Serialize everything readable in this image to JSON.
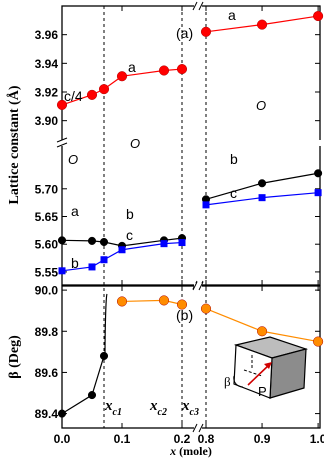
{
  "chart_data": {
    "type": "scatter",
    "xlabel": "x (mole)",
    "x_ticks": [
      "0.0",
      "0.1",
      "0.2",
      "0.8",
      "0.9",
      "1.0"
    ],
    "top_panel": {
      "panel_label": "(a)",
      "ylabel": "Lattice constant (Å)",
      "upper_axis": {
        "ylim": [
          3.89,
          3.98
        ],
        "yticks": [
          "3.90",
          "3.92",
          "3.94",
          "3.96"
        ]
      },
      "lower_axis": {
        "ylim": [
          5.53,
          5.77
        ],
        "yticks": [
          "5.55",
          "5.60",
          "5.65",
          "5.70"
        ]
      },
      "series": [
        {
          "name": "c/4",
          "color": "#ff0000",
          "marker": "circle",
          "axis": "upper",
          "points": [
            [
              0.0,
              3.911
            ],
            [
              0.05,
              3.918
            ],
            [
              0.07,
              3.922
            ],
            [
              0.1,
              3.931
            ],
            [
              0.17,
              3.935
            ],
            [
              0.2,
              3.936
            ],
            [
              0.8,
              3.962
            ],
            [
              0.9,
              3.967
            ],
            [
              1.0,
              3.973
            ]
          ]
        },
        {
          "name": "a",
          "color": "#000000",
          "marker": "circle",
          "axis": "lower",
          "points": [
            [
              0.0,
              5.607
            ],
            [
              0.05,
              5.606
            ],
            [
              0.07,
              5.604
            ],
            [
              0.1,
              5.597
            ],
            [
              0.17,
              5.607
            ],
            [
              0.2,
              5.611
            ],
            [
              0.8,
              5.681
            ],
            [
              0.9,
              5.71
            ],
            [
              1.0,
              5.728
            ]
          ]
        },
        {
          "name": "b",
          "color": "#0000ff",
          "marker": "square",
          "axis": "lower",
          "points": [
            [
              0.0,
              5.552
            ],
            [
              0.05,
              5.559
            ],
            [
              0.07,
              5.572
            ],
            [
              0.1,
              5.59
            ],
            [
              0.17,
              5.601
            ],
            [
              0.2,
              5.603
            ],
            [
              0.8,
              5.671
            ],
            [
              0.9,
              5.684
            ],
            [
              1.0,
              5.693
            ]
          ]
        }
      ],
      "labels": [
        "a",
        "a",
        "c/4",
        "a",
        "b",
        "b",
        "c",
        "b",
        "c"
      ],
      "phase_labels": [
        "O",
        "O",
        "O"
      ]
    },
    "bottom_panel": {
      "panel_label": "(b)",
      "ylabel": "β (Deg)",
      "ylim": [
        89.33,
        90.02
      ],
      "yticks": [
        "89.4",
        "89.6",
        "89.8",
        "90.0"
      ],
      "series": [
        {
          "name": "β",
          "color": "#000000",
          "marker": "circle",
          "points": [
            [
              0.0,
              89.4
            ],
            [
              0.05,
              89.49
            ],
            [
              0.07,
              89.68
            ]
          ]
        },
        {
          "name": "β",
          "color": "#ff8c00",
          "marker": "circle",
          "points": [
            [
              0.1,
              89.945
            ],
            [
              0.17,
              89.95
            ],
            [
              0.2,
              89.93
            ],
            [
              0.8,
              89.91
            ],
            [
              0.9,
              89.8
            ],
            [
              1.0,
              89.75
            ]
          ]
        }
      ],
      "inset_labels": [
        "β",
        "P"
      ]
    },
    "critical_points": [
      {
        "label": "x",
        "sub": "c1",
        "x": 0.07
      },
      {
        "label": "x",
        "sub": "c2",
        "x": 0.2
      },
      {
        "label": "x",
        "sub": "c3",
        "x": 0.8
      }
    ],
    "colors": {
      "red": "#ff0000",
      "blue": "#0000ff",
      "orange": "#ff8c00",
      "black": "#000000"
    }
  }
}
